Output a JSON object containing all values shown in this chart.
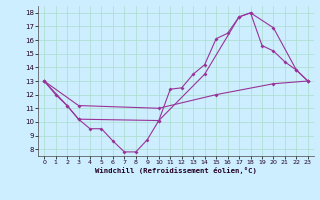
{
  "xlabel": "Windchill (Refroidissement éolien,°C)",
  "background_color": "#cceeff",
  "grid_color": "#aaddcc",
  "line_color": "#993399",
  "xlim": [
    -0.5,
    23.5
  ],
  "ylim": [
    7.5,
    18.5
  ],
  "yticks": [
    8,
    9,
    10,
    11,
    12,
    13,
    14,
    15,
    16,
    17,
    18
  ],
  "xticks": [
    0,
    1,
    2,
    3,
    4,
    5,
    6,
    7,
    8,
    9,
    10,
    11,
    12,
    13,
    14,
    15,
    16,
    17,
    18,
    19,
    20,
    21,
    22,
    23
  ],
  "series1": [
    [
      0,
      13
    ],
    [
      1,
      12
    ],
    [
      2,
      11.2
    ],
    [
      3,
      10.2
    ],
    [
      4,
      9.5
    ],
    [
      5,
      9.5
    ],
    [
      6,
      8.6
    ],
    [
      7,
      7.8
    ],
    [
      8,
      7.8
    ],
    [
      9,
      8.7
    ],
    [
      10,
      10.1
    ],
    [
      11,
      12.4
    ],
    [
      12,
      12.5
    ],
    [
      13,
      13.5
    ],
    [
      14,
      14.2
    ],
    [
      15,
      16.1
    ],
    [
      16,
      16.5
    ],
    [
      17,
      17.7
    ],
    [
      18,
      18.0
    ],
    [
      19,
      15.6
    ],
    [
      20,
      15.2
    ],
    [
      21,
      14.4
    ],
    [
      22,
      13.8
    ],
    [
      23,
      13.0
    ]
  ],
  "series2": [
    [
      0,
      13
    ],
    [
      2,
      11.2
    ],
    [
      3,
      10.2
    ],
    [
      10,
      10.1
    ],
    [
      14,
      13.5
    ],
    [
      17,
      17.7
    ],
    [
      18,
      18.0
    ],
    [
      20,
      16.9
    ],
    [
      22,
      13.8
    ],
    [
      23,
      13.0
    ]
  ],
  "series3": [
    [
      0,
      13
    ],
    [
      3,
      11.2
    ],
    [
      10,
      11.0
    ],
    [
      15,
      12.0
    ],
    [
      20,
      12.8
    ],
    [
      23,
      13.0
    ]
  ]
}
